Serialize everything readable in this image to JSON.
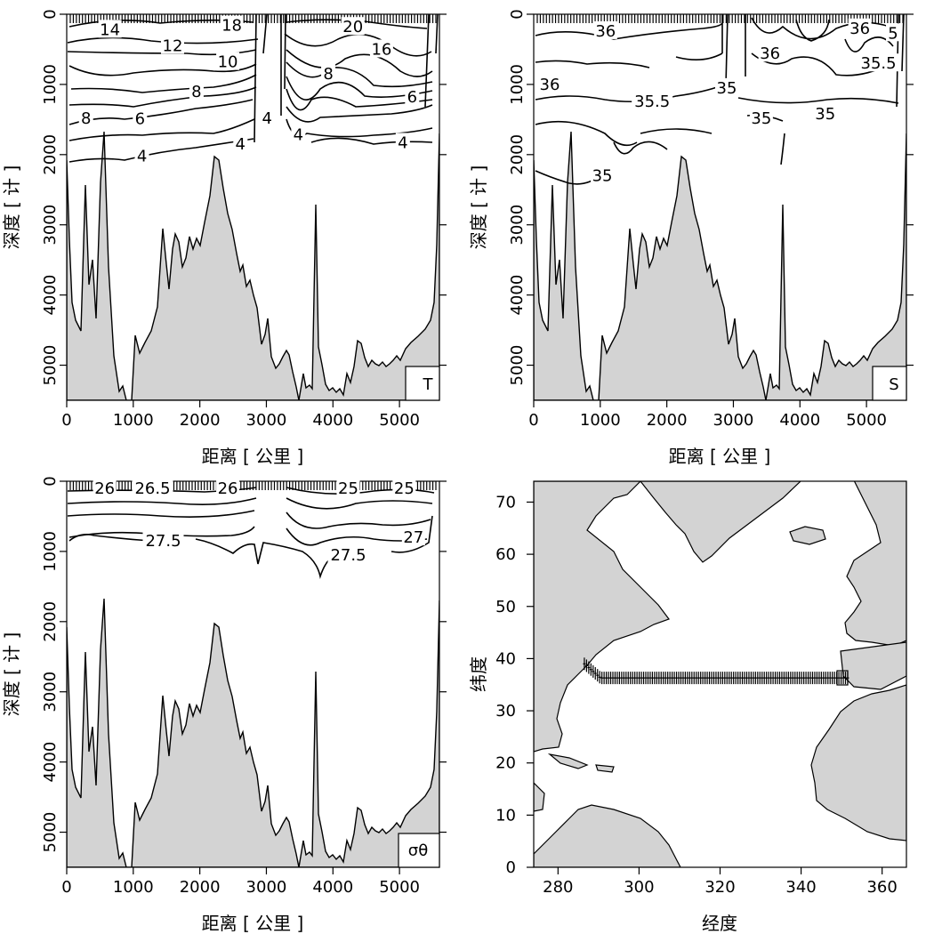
{
  "chart_data": [
    {
      "type": "section",
      "panel": "temperature",
      "label": "T",
      "xlabel": "距离 [ 公里 ]",
      "ylabel": "深度 [ 计 ]",
      "xticks": [
        "0",
        "1000",
        "2000",
        "3000",
        "4000",
        "5000"
      ],
      "yticks": [
        "0",
        "1000",
        "2000",
        "3000",
        "4000",
        "5000"
      ],
      "xlim": [
        0,
        5600
      ],
      "ylim": [
        5500,
        0
      ],
      "contour_labels": [
        {
          "text": "14",
          "x": 650,
          "y": 220
        },
        {
          "text": "18",
          "x": 2480,
          "y": 160
        },
        {
          "text": "20",
          "x": 4300,
          "y": 180
        },
        {
          "text": "12",
          "x": 1590,
          "y": 450
        },
        {
          "text": "16",
          "x": 4730,
          "y": 500
        },
        {
          "text": "10",
          "x": 2420,
          "y": 680
        },
        {
          "text": "8",
          "x": 3930,
          "y": 850
        },
        {
          "text": "8",
          "x": 1950,
          "y": 1100
        },
        {
          "text": "6",
          "x": 5190,
          "y": 1180
        },
        {
          "text": "8",
          "x": 290,
          "y": 1480
        },
        {
          "text": "6",
          "x": 1100,
          "y": 1490
        },
        {
          "text": "4",
          "x": 3010,
          "y": 1480
        },
        {
          "text": "4",
          "x": 2610,
          "y": 1850
        },
        {
          "text": "4",
          "x": 3480,
          "y": 1720
        },
        {
          "text": "4",
          "x": 5050,
          "y": 1830
        },
        {
          "text": "4",
          "x": 1130,
          "y": 2020
        }
      ]
    },
    {
      "type": "section",
      "panel": "salinity",
      "label": "S",
      "xlabel": "距离 [ 公里 ]",
      "ylabel": "深度 [ 计 ]",
      "xticks": [
        "0",
        "1000",
        "2000",
        "3000",
        "4000",
        "5000"
      ],
      "yticks": [
        "0",
        "1000",
        "2000",
        "3000",
        "4000",
        "5000"
      ],
      "xlim": [
        0,
        5600
      ],
      "ylim": [
        5500,
        0
      ],
      "contour_labels": [
        {
          "text": "36",
          "x": 1080,
          "y": 240
        },
        {
          "text": "36",
          "x": 4900,
          "y": 200
        },
        {
          "text": "5",
          "x": 5400,
          "y": 270
        },
        {
          "text": "36",
          "x": 3550,
          "y": 560
        },
        {
          "text": "35.5",
          "x": 5180,
          "y": 700
        },
        {
          "text": "36",
          "x": 240,
          "y": 1000
        },
        {
          "text": "35.5",
          "x": 1780,
          "y": 1240
        },
        {
          "text": "35",
          "x": 2900,
          "y": 1050
        },
        {
          "text": "35",
          "x": 3420,
          "y": 1480
        },
        {
          "text": "35",
          "x": 4380,
          "y": 1420
        },
        {
          "text": "35",
          "x": 1030,
          "y": 2300
        }
      ]
    },
    {
      "type": "section",
      "panel": "density",
      "label": "σθ",
      "xlabel": "距离 [ 公里 ]",
      "ylabel": "深度 [ 计 ]",
      "xticks": [
        "0",
        "1000",
        "2000",
        "3000",
        "4000",
        "5000"
      ],
      "yticks": [
        "0",
        "1000",
        "2000",
        "3000",
        "4000",
        "5000"
      ],
      "xlim": [
        0,
        5600
      ],
      "ylim": [
        5500,
        0
      ],
      "contour_labels": [
        {
          "text": "26",
          "x": 570,
          "y": 100
        },
        {
          "text": "26.5",
          "x": 1290,
          "y": 100
        },
        {
          "text": "26",
          "x": 2420,
          "y": 100
        },
        {
          "text": "25",
          "x": 4230,
          "y": 100
        },
        {
          "text": "25",
          "x": 5070,
          "y": 100
        },
        {
          "text": "27.5",
          "x": 1450,
          "y": 850
        },
        {
          "text": "27",
          "x": 5210,
          "y": 800
        },
        {
          "text": "27.5",
          "x": 4230,
          "y": 1050
        }
      ]
    },
    {
      "type": "map",
      "panel": "station-map",
      "xlabel": "经度",
      "ylabel": "纬度",
      "xticks": [
        "280",
        "300",
        "320",
        "340",
        "360"
      ],
      "yticks": [
        "0",
        "10",
        "20",
        "30",
        "40",
        "50",
        "60",
        "70"
      ],
      "xlim": [
        274,
        366
      ],
      "ylim": [
        0,
        74
      ],
      "stations": {
        "lon_start": 286.5,
        "lon_end": 351.5,
        "lat_start": 39.0,
        "lat": 36.3
      }
    }
  ],
  "colors": {
    "land": "#d3d3d3",
    "line": "#000000",
    "background": "#ffffff"
  }
}
